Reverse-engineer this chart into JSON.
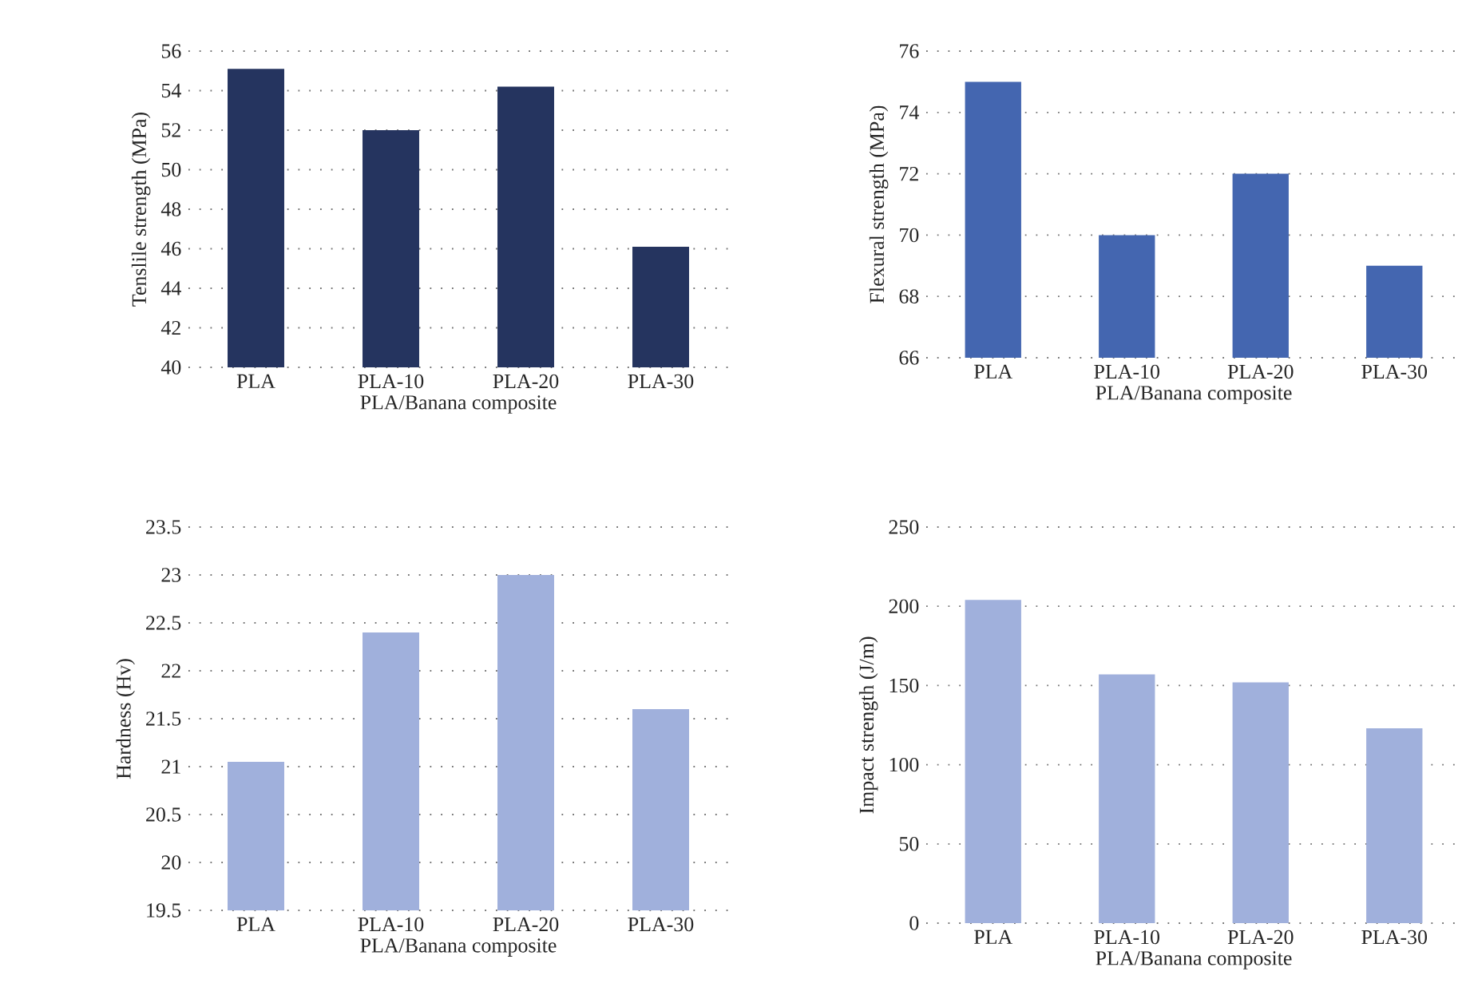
{
  "chart_data": [
    {
      "type": "bar",
      "xlabel": "PLA/Banana composite",
      "ylabel": "Tenslile strength (MPa)",
      "categories": [
        "PLA",
        "PLA-10",
        "PLA-20",
        "PLA-30"
      ],
      "values": [
        55.1,
        52,
        54.2,
        46.1
      ],
      "color": "#25345f",
      "ylim": [
        40,
        56
      ],
      "yticks": [
        40,
        42,
        44,
        46,
        48,
        50,
        52,
        54,
        56
      ],
      "grid": "y"
    },
    {
      "type": "bar",
      "xlabel": "PLA/Banana composite",
      "ylabel": "Flexural strength (MPa)",
      "categories": [
        "PLA",
        "PLA-10",
        "PLA-20",
        "PLA-30"
      ],
      "values": [
        75,
        70,
        72,
        69
      ],
      "color": "#4466b0",
      "ylim": [
        66,
        76
      ],
      "yticks": [
        66,
        68,
        70,
        72,
        74,
        76
      ],
      "grid": "y"
    },
    {
      "type": "bar",
      "xlabel": "PLA/Banana composite",
      "ylabel": "Hardness (Hv)",
      "categories": [
        "PLA",
        "PLA-10",
        "PLA-20",
        "PLA-30"
      ],
      "values": [
        21.05,
        22.4,
        23.0,
        21.6
      ],
      "color": "#a0b0dc",
      "ylim": [
        19.5,
        23.5
      ],
      "yticks": [
        19.5,
        20,
        20.5,
        21,
        21.5,
        22,
        22.5,
        23,
        23.5
      ],
      "grid": "y"
    },
    {
      "type": "bar",
      "xlabel": "PLA/Banana composite",
      "ylabel": "Impact strength (J/m)",
      "categories": [
        "PLA",
        "PLA-10",
        "PLA-20",
        "PLA-30"
      ],
      "values": [
        204,
        157,
        152,
        123
      ],
      "color": "#a0b0dc",
      "ylim": [
        0,
        250
      ],
      "yticks": [
        0,
        50,
        100,
        150,
        200,
        250
      ],
      "grid": "y"
    }
  ]
}
